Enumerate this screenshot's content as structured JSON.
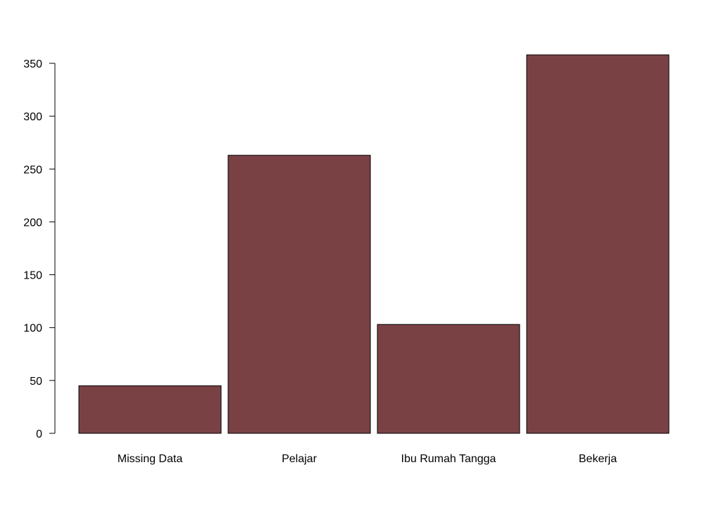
{
  "chart_data": {
    "type": "bar",
    "title": "",
    "xlabel": "",
    "ylabel": "",
    "categories": [
      "Missing Data",
      "Pelajar",
      "Ibu Rumah Tangga",
      "Bekerja"
    ],
    "values": [
      45,
      263,
      103,
      358
    ],
    "ylim": [
      0,
      358
    ],
    "yticks": [
      0,
      50,
      100,
      150,
      200,
      250,
      300,
      350
    ],
    "bar_color": "#7a4145",
    "bar_border_color": "#000000",
    "grid": false,
    "legend": "none"
  }
}
